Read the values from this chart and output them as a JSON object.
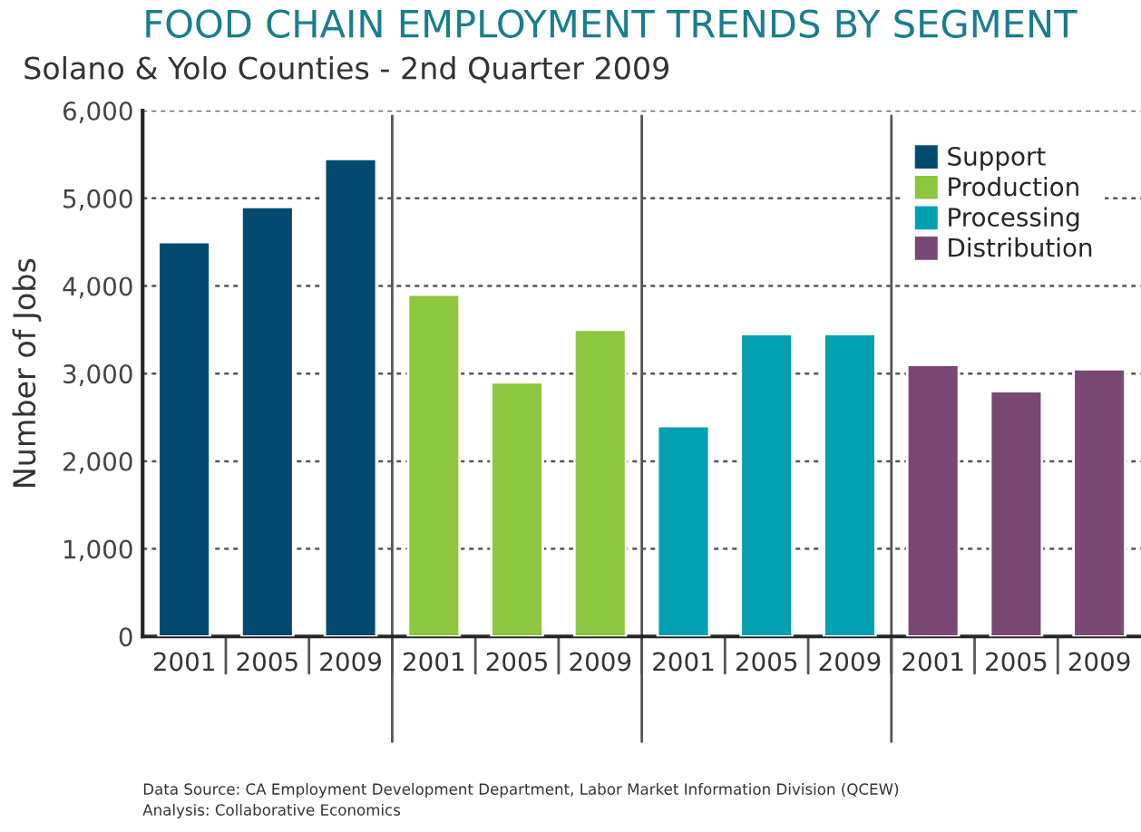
{
  "chart_data": {
    "type": "bar",
    "title": "FOOD CHAIN EMPLOYMENT TRENDS BY SEGMENT",
    "subtitle": "Solano & Yolo Counties - 2nd Quarter 2009",
    "ylabel": "Number of Jobs",
    "categories": [
      "2001",
      "2005",
      "2009",
      "2001",
      "2005",
      "2009",
      "2001",
      "2005",
      "2009",
      "2001",
      "2005",
      "2009"
    ],
    "series": [
      {
        "name": "Support",
        "color": "#034a70",
        "values": [
          4500,
          4900,
          5450,
          null,
          null,
          null,
          null,
          null,
          null,
          null,
          null,
          null
        ]
      },
      {
        "name": "Production",
        "color": "#8dc63f",
        "values": [
          null,
          null,
          null,
          3900,
          2900,
          3500,
          null,
          null,
          null,
          null,
          null,
          null
        ]
      },
      {
        "name": "Processing",
        "color": "#00a0b0",
        "values": [
          null,
          null,
          null,
          null,
          null,
          null,
          2400,
          3450,
          3450,
          null,
          null,
          null
        ]
      },
      {
        "name": "Distribution",
        "color": "#7a4874",
        "values": [
          null,
          null,
          null,
          null,
          null,
          null,
          null,
          null,
          null,
          3100,
          2800,
          3050
        ]
      }
    ],
    "ylim": [
      0,
      6000
    ],
    "yticks": [
      {
        "value": 0,
        "label": "0"
      },
      {
        "value": 1000,
        "label": "1,000"
      },
      {
        "value": 2000,
        "label": "2,000"
      },
      {
        "value": 3000,
        "label": "3,000"
      },
      {
        "value": 4000,
        "label": "4,000"
      },
      {
        "value": 5000,
        "label": "5,000"
      },
      {
        "value": 6000,
        "label": "6,000"
      }
    ],
    "grid": "y",
    "legend": "top right",
    "annotations": [
      "Data Source: CA Employment Development Department, Labor Market Information Division (QCEW)",
      "Analysis: Collaborative Economics"
    ]
  }
}
